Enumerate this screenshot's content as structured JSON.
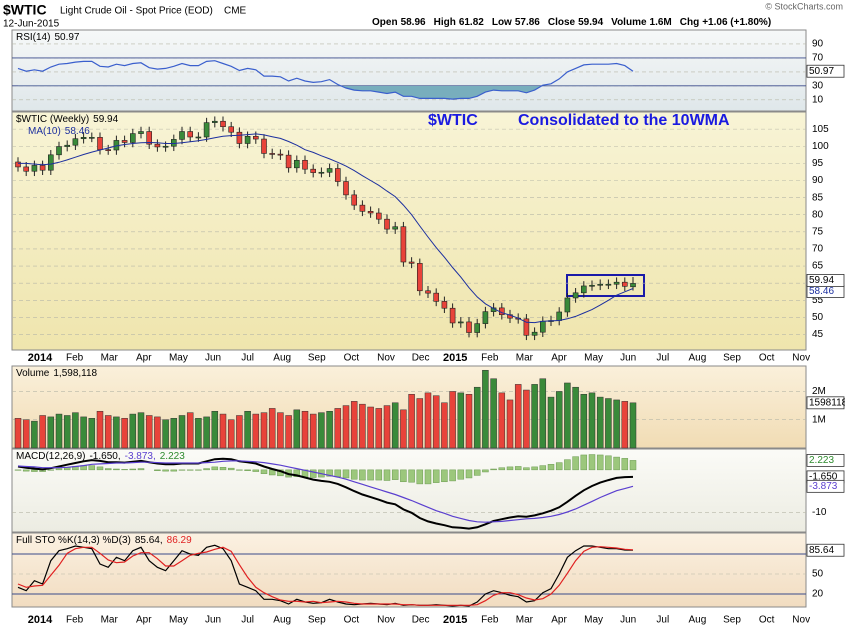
{
  "header": {
    "symbol": "$WTIC",
    "name": "Light Crude Oil - Spot Price (EOD)",
    "exchange": "CME",
    "date": "12-Jun-2015",
    "brand": "© StockCharts.com",
    "quote": [
      [
        "Open",
        "58.96"
      ],
      [
        "High",
        "61.82"
      ],
      [
        "Low",
        "57.86"
      ],
      [
        "Close",
        "59.94"
      ],
      [
        "Volume",
        "1.6M"
      ],
      [
        "Chg",
        "+1.06 (+1.80%)"
      ]
    ]
  },
  "x_axis": {
    "labels": [
      "2014",
      "Feb",
      "Mar",
      "Apr",
      "May",
      "Jun",
      "Jul",
      "Aug",
      "Sep",
      "Oct",
      "Nov",
      "Dec",
      "2015",
      "Feb",
      "Mar",
      "Apr",
      "May",
      "Jun",
      "Jul",
      "Aug",
      "Sep",
      "Oct",
      "Nov"
    ]
  },
  "chart_data": [
    {
      "type": "line",
      "title": "RSI(14)",
      "ylim": [
        -6,
        110
      ],
      "yticks": [
        10,
        30,
        50,
        70,
        90
      ],
      "bands": [
        30,
        70
      ],
      "fill_below": 30,
      "fill_color": "#78aebd",
      "series": [
        {
          "name": "RSI(14)",
          "color": "#3a5fcd",
          "values": [
            55,
            51,
            53,
            51,
            57,
            61,
            62,
            64,
            65,
            65,
            58,
            57,
            61,
            59,
            62,
            63,
            56,
            54,
            55,
            58,
            62,
            59,
            59,
            65,
            66,
            62,
            58,
            52,
            55,
            53,
            44,
            44,
            43,
            37,
            41,
            37,
            35,
            36,
            39,
            32,
            27,
            24,
            23,
            23,
            21,
            19,
            21,
            15,
            15,
            12,
            12,
            12,
            12,
            11,
            12,
            12,
            15,
            21,
            24,
            23,
            23,
            23,
            20,
            24,
            31,
            33,
            40,
            50,
            55,
            60,
            61,
            61,
            61,
            62,
            59,
            50.97
          ]
        }
      ]
    },
    {
      "type": "candlestick",
      "title": "$WTIC (Weekly)",
      "up_color": "#3a8a3a",
      "down_color": "#e8433a",
      "ylim": [
        40.5,
        110
      ],
      "yticks": [
        45,
        50,
        55,
        60,
        65,
        70,
        75,
        80,
        85,
        90,
        95,
        100,
        105
      ],
      "annotations": [
        "$WTIC",
        "Consolidated to the 10WMA"
      ],
      "open": [
        95.4,
        93.96,
        92.7,
        94.4,
        93.0,
        97.5,
        99.9,
        100.3,
        102.2,
        102.6,
        102.6,
        99.0,
        98.9,
        101.7,
        101.1,
        103.7,
        104.3,
        100.6,
        99.8,
        100.0,
        102.0,
        104.3,
        102.7,
        102.7,
        106.9,
        107.3,
        105.7,
        104.1,
        100.8,
        102.9,
        102.1,
        97.9,
        97.7,
        97.4,
        93.7,
        95.9,
        93.3,
        92.3,
        92.4,
        93.5,
        89.7,
        85.8,
        82.8,
        81.0,
        80.5,
        78.7,
        75.8,
        76.5,
        66.2,
        65.8,
        57.8,
        57.1,
        54.7,
        52.7,
        48.4,
        48.7,
        45.6,
        48.2,
        51.7,
        52.8,
        50.8,
        49.8,
        49.6,
        44.8,
        45.7,
        48.9,
        49.1,
        51.6,
        55.7,
        57.2,
        59.2,
        59.4,
        59.7,
        59.7,
        60.3,
        58.96
      ],
      "high": [
        96.8,
        95.4,
        95.8,
        95.8,
        98.9,
        101.3,
        101.7,
        103.6,
        104.0,
        104.0,
        104.0,
        100.4,
        103.1,
        103.1,
        105.1,
        105.7,
        105.7,
        102.0,
        101.4,
        103.4,
        105.7,
        105.7,
        104.1,
        108.3,
        108.7,
        108.7,
        107.1,
        105.5,
        104.3,
        104.3,
        103.5,
        99.3,
        99.1,
        98.8,
        97.3,
        97.3,
        94.7,
        93.8,
        94.9,
        94.9,
        91.1,
        87.2,
        84.2,
        82.4,
        81.9,
        80.1,
        77.9,
        77.9,
        67.6,
        67.2,
        59.2,
        58.5,
        56.1,
        54.1,
        50.1,
        50.1,
        49.6,
        53.1,
        54.2,
        54.2,
        52.2,
        51.2,
        51.0,
        47.1,
        50.3,
        50.5,
        53.0,
        57.1,
        58.6,
        60.6,
        60.8,
        61.1,
        61.1,
        61.7,
        61.7,
        61.82
      ],
      "low": [
        92.6,
        91.3,
        91.3,
        91.6,
        91.6,
        96.1,
        98.5,
        98.9,
        100.8,
        101.2,
        97.6,
        97.5,
        97.5,
        99.7,
        99.7,
        102.3,
        99.2,
        98.4,
        98.4,
        98.6,
        100.6,
        101.3,
        101.3,
        101.3,
        105.5,
        104.3,
        102.7,
        99.4,
        99.4,
        100.7,
        96.5,
        96.3,
        96.0,
        92.3,
        92.3,
        91.9,
        90.9,
        90.9,
        91.0,
        88.3,
        84.4,
        81.4,
        79.6,
        79.1,
        77.3,
        74.4,
        74.4,
        64.8,
        64.4,
        56.4,
        55.7,
        53.3,
        51.3,
        47.0,
        47.0,
        44.2,
        44.2,
        46.8,
        50.3,
        49.4,
        48.4,
        48.2,
        43.4,
        43.4,
        44.3,
        47.5,
        47.7,
        50.2,
        54.3,
        55.8,
        57.8,
        58.0,
        58.3,
        58.3,
        57.7,
        57.86
      ],
      "close": [
        93.96,
        92.7,
        94.4,
        93.0,
        97.5,
        99.9,
        100.3,
        102.2,
        102.6,
        102.6,
        99.0,
        98.9,
        101.7,
        101.1,
        103.7,
        104.3,
        100.6,
        99.8,
        100.0,
        102.0,
        104.3,
        102.7,
        102.7,
        106.9,
        107.3,
        105.7,
        104.1,
        100.8,
        102.9,
        102.1,
        97.9,
        97.7,
        97.4,
        93.7,
        95.9,
        93.3,
        92.3,
        92.4,
        93.5,
        89.7,
        85.8,
        82.8,
        81.0,
        80.5,
        78.7,
        75.8,
        76.5,
        66.2,
        65.8,
        57.8,
        57.1,
        54.7,
        52.7,
        48.4,
        48.7,
        45.6,
        48.2,
        51.7,
        52.8,
        50.8,
        49.8,
        49.6,
        44.8,
        45.7,
        48.9,
        49.1,
        51.6,
        55.7,
        57.2,
        59.2,
        59.4,
        59.7,
        59.7,
        60.3,
        59.1,
        59.94
      ],
      "ma": {
        "name": "MA(10)",
        "color": "#1c2f9f",
        "values": [
          95,
          95,
          94.8,
          94.6,
          94.8,
          95.3,
          96,
          96.8,
          97.6,
          98.3,
          98.9,
          99.5,
          100.1,
          100.5,
          100.8,
          101.0,
          101.1,
          101.0,
          100.8,
          100.8,
          101.0,
          101.3,
          101.6,
          102.0,
          102.5,
          102.9,
          103.1,
          103.2,
          103.4,
          103.6,
          103.3,
          102.8,
          102.3,
          101.4,
          100.3,
          99.0,
          98.2,
          97.2,
          96.3,
          95.3,
          94.2,
          92.9,
          91.4,
          90.0,
          88.6,
          86.9,
          85.3,
          82.8,
          80.0,
          76.7,
          73.5,
          70.4,
          67.6,
          64.6,
          61.8,
          58.7,
          56.0,
          54.0,
          52.6,
          51.4,
          50.7,
          49.8,
          48.6,
          48.5,
          48.9,
          49.0,
          49.1,
          49.6,
          50.3,
          51.3,
          52.3,
          53.6,
          55.0,
          56.5,
          57.5,
          58.46
        ]
      }
    },
    {
      "type": "bar",
      "title": "Volume",
      "last_label": "1,598,118",
      "ylim": [
        0,
        2900000
      ],
      "yticks": [
        {
          "value": 1000000,
          "label": "1M"
        },
        {
          "value": 2000000,
          "label": "2M"
        }
      ],
      "values": [
        1050000,
        1000000,
        950000,
        1150000,
        1100000,
        1200000,
        1150000,
        1250000,
        1100000,
        1050000,
        1300000,
        1150000,
        1100000,
        1050000,
        1200000,
        1250000,
        1150000,
        1100000,
        1000000,
        1050000,
        1150000,
        1250000,
        1050000,
        1100000,
        1300000,
        1200000,
        1000000,
        1150000,
        1300000,
        1200000,
        1250000,
        1400000,
        1250000,
        1150000,
        1350000,
        1300000,
        1200000,
        1250000,
        1300000,
        1400000,
        1500000,
        1650000,
        1550000,
        1450000,
        1400000,
        1500000,
        1600000,
        1350000,
        1900000,
        1750000,
        1950000,
        1850000,
        1600000,
        2000000,
        1950000,
        1900000,
        2150000,
        2750000,
        2450000,
        1950000,
        1700000,
        2250000,
        2050000,
        2250000,
        2450000,
        1800000,
        2000000,
        2300000,
        2150000,
        1900000,
        1950000,
        1800000,
        1750000,
        1700000,
        1650000,
        1598118
      ]
    },
    {
      "type": "line",
      "title": "MACD(12,26,9)",
      "legend_values": [
        "-1.650,",
        "-3.873,",
        "2.223"
      ],
      "last_labels": [
        "-1.650",
        "-3.873",
        "2.223"
      ],
      "ylim": [
        -14.6,
        4.9
      ],
      "yticks": [
        -10
      ],
      "series": [
        {
          "name": "MACD",
          "color": "#000000",
          "values": [
            0.8,
            0.5,
            0.3,
            0.1,
            0.4,
            0.8,
            1.2,
            1.6,
            2.0,
            2.3,
            2.1,
            1.8,
            1.8,
            1.7,
            1.9,
            2.1,
            1.8,
            1.5,
            1.3,
            1.3,
            1.5,
            1.5,
            1.5,
            2.0,
            2.5,
            2.6,
            2.5,
            2.0,
            1.8,
            1.5,
            0.8,
            0.2,
            -0.3,
            -1.0,
            -1.3,
            -1.8,
            -2.3,
            -2.6,
            -2.8,
            -3.3,
            -4.1,
            -5.0,
            -5.8,
            -6.4,
            -7.0,
            -7.7,
            -8.1,
            -9.3,
            -10.1,
            -11.3,
            -12.1,
            -12.6,
            -13.0,
            -13.5,
            -13.6,
            -13.8,
            -13.5,
            -12.8,
            -12.0,
            -11.6,
            -11.2,
            -10.9,
            -11.0,
            -10.7,
            -10.2,
            -9.6,
            -8.8,
            -7.5,
            -6.1,
            -4.8,
            -3.8,
            -3.0,
            -2.4,
            -1.9,
            -1.7,
            -1.65
          ]
        },
        {
          "name": "Signal",
          "color": "#5a3fcf",
          "values": [
            0.9,
            0.8,
            0.7,
            0.5,
            0.5,
            0.5,
            0.6,
            0.8,
            1.0,
            1.3,
            1.4,
            1.5,
            1.6,
            1.6,
            1.7,
            1.8,
            1.8,
            1.7,
            1.6,
            1.6,
            1.6,
            1.6,
            1.6,
            1.7,
            1.8,
            2.0,
            2.1,
            2.1,
            2.0,
            1.9,
            1.7,
            1.4,
            1.1,
            0.7,
            0.3,
            -0.1,
            -0.5,
            -0.9,
            -1.3,
            -1.7,
            -2.2,
            -2.8,
            -3.4,
            -4.0,
            -4.6,
            -5.2,
            -5.8,
            -6.5,
            -7.2,
            -8.0,
            -8.8,
            -9.6,
            -10.2,
            -10.9,
            -11.4,
            -11.9,
            -12.2,
            -12.3,
            -12.2,
            -12.1,
            -11.9,
            -11.7,
            -11.5,
            -11.4,
            -11.2,
            -10.9,
            -10.5,
            -9.9,
            -9.2,
            -8.3,
            -7.4,
            -6.5,
            -5.7,
            -4.9,
            -4.4,
            -3.873
          ]
        }
      ],
      "histogram": {
        "color": "#9cc77c",
        "values": [
          -0.1,
          -0.3,
          -0.4,
          -0.4,
          -0.1,
          0.3,
          0.6,
          0.8,
          1.0,
          1.0,
          0.7,
          0.3,
          0.2,
          0.1,
          0.2,
          0.3,
          0.0,
          -0.2,
          -0.3,
          -0.3,
          -0.1,
          -0.1,
          -0.1,
          0.3,
          0.7,
          0.6,
          0.4,
          -0.1,
          -0.2,
          -0.4,
          -0.9,
          -1.2,
          -1.4,
          -1.7,
          -1.6,
          -1.7,
          -1.8,
          -1.7,
          -1.5,
          -1.6,
          -1.9,
          -2.2,
          -2.4,
          -2.4,
          -2.4,
          -2.5,
          -2.3,
          -2.8,
          -2.9,
          -3.3,
          -3.3,
          -3.0,
          -2.8,
          -2.6,
          -2.2,
          -1.9,
          -1.3,
          -0.5,
          0.2,
          0.5,
          0.7,
          0.8,
          0.5,
          0.7,
          1.0,
          1.3,
          1.7,
          2.4,
          3.1,
          3.5,
          3.6,
          3.5,
          3.3,
          3.0,
          2.7,
          2.223
        ]
      }
    },
    {
      "type": "line",
      "title": "Full STO %K(14,3) %D(3)",
      "legend_values": [
        "85.64,",
        "86.29"
      ],
      "ylim": [
        0.5,
        111.5
      ],
      "yticks": [
        20,
        50
      ],
      "bands": [
        20,
        80
      ],
      "series": [
        {
          "name": "%K",
          "color": "#000000",
          "values": [
            30,
            25,
            40,
            35,
            70,
            85,
            88,
            92,
            90,
            88,
            65,
            60,
            75,
            70,
            85,
            90,
            70,
            60,
            55,
            70,
            85,
            80,
            78,
            90,
            93,
            88,
            70,
            35,
            30,
            25,
            12,
            12,
            10,
            5,
            12,
            8,
            6,
            7,
            12,
            8,
            5,
            4,
            5,
            6,
            5,
            4,
            6,
            3,
            4,
            3,
            3,
            4,
            3,
            2,
            3,
            2,
            8,
            20,
            25,
            22,
            18,
            16,
            8,
            10,
            22,
            28,
            50,
            75,
            85,
            92,
            92,
            90,
            88,
            88,
            86,
            85.64
          ]
        },
        {
          "name": "%D",
          "color": "#e02020",
          "values": [
            35,
            30,
            32,
            33,
            48,
            63,
            81,
            88,
            90,
            90,
            81,
            71,
            67,
            68,
            77,
            82,
            82,
            73,
            62,
            62,
            70,
            78,
            81,
            83,
            87,
            90,
            84,
            64,
            45,
            30,
            22,
            16,
            11,
            9,
            9,
            8,
            9,
            7,
            8,
            9,
            8,
            6,
            5,
            5,
            5,
            5,
            5,
            4,
            4,
            3,
            3,
            3,
            3,
            3,
            3,
            3,
            4,
            10,
            18,
            22,
            22,
            19,
            14,
            11,
            13,
            20,
            33,
            51,
            70,
            84,
            90,
            91,
            90,
            89,
            87,
            86.29
          ]
        }
      ]
    }
  ]
}
